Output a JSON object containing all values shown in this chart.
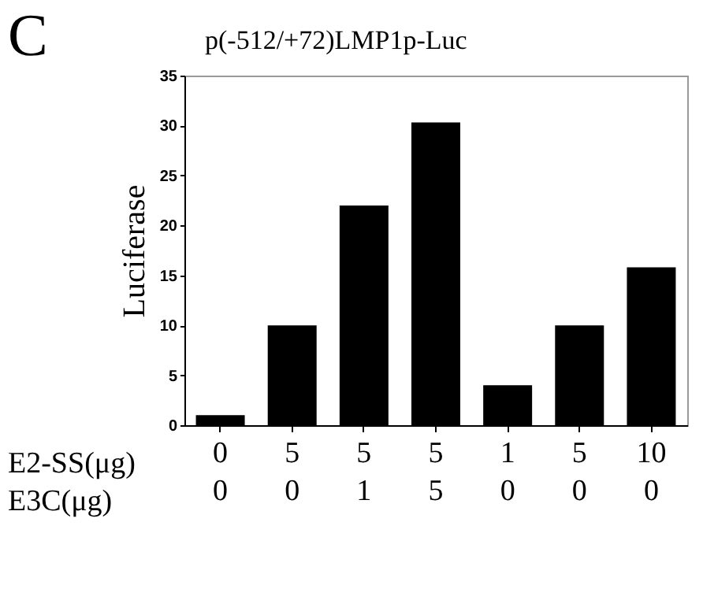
{
  "chart_data": {
    "type": "bar",
    "title": "p(-512/+72)LMP1p-Luc",
    "ylabel": "Luciferase",
    "categories": [
      "0\n0",
      "5\n0",
      "5\n1",
      "5\n5",
      "1\n0",
      "5\n0",
      "10\n0"
    ],
    "values": [
      1,
      10,
      22,
      30.3,
      4,
      10,
      15.8
    ],
    "color": "#000000",
    "ylim": [
      0,
      35
    ],
    "yticks": [
      0,
      5,
      10,
      15,
      20,
      25,
      30,
      35
    ],
    "grid": false,
    "annotations": [
      "C",
      "E2-SS(μg)",
      "E3C(μg)"
    ]
  }
}
